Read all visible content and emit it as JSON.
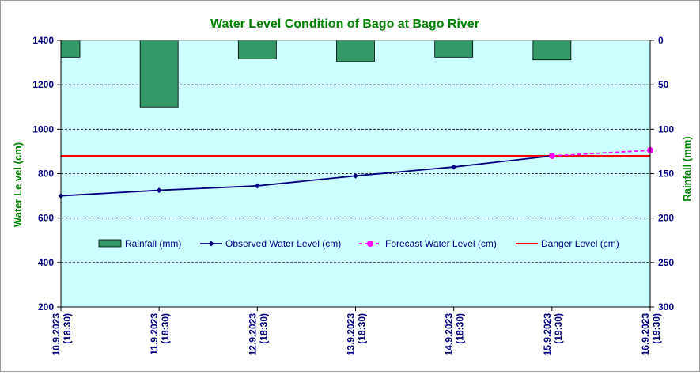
{
  "chart_data": {
    "type": "bar+line",
    "title": "Water Level Condition  of Bago at Bago River",
    "ylabel_left": "Water Le vel (cm)",
    "ylabel_right": "Rainfall (mm)",
    "ylim_left": [
      200,
      1400
    ],
    "yticks_left": [
      "200",
      "400",
      "600",
      "800",
      "1000",
      "1200",
      "1400"
    ],
    "ylim_right": [
      0,
      300
    ],
    "yticks_right": [
      "0",
      "50",
      "100",
      "150",
      "200",
      "250",
      "300"
    ],
    "right_axis_inverted": true,
    "grid": true,
    "legend_position": "inside-middle",
    "x_categories": [
      {
        "date": "10.9.2023",
        "time": "(18:30)"
      },
      {
        "date": "11.9.2023",
        "time": "(18:30)"
      },
      {
        "date": "12.9.2023",
        "time": "(18:30)"
      },
      {
        "date": "13.9.2023",
        "time": "(18:30)"
      },
      {
        "date": "14.9.2023",
        "time": "(18:30)"
      },
      {
        "date": "15.9.2023",
        "time": "(19:30)"
      },
      {
        "date": "16.9.2023",
        "time": "(19:30)"
      }
    ],
    "series": [
      {
        "name": "Rainfall (mm)",
        "kind": "bar",
        "axis": "right",
        "color": "#339966",
        "values": [
          19,
          75,
          21,
          24,
          19,
          22
        ]
      },
      {
        "name": "Observed Water Level (cm)",
        "kind": "line",
        "axis": "left",
        "color": "#000080",
        "values": [
          700,
          725,
          745,
          790,
          830,
          880
        ]
      },
      {
        "name": "Forecast Water Level (cm)",
        "kind": "dashed-line",
        "axis": "left",
        "color": "#ff00ff",
        "points": [
          {
            "index": 5,
            "value": 880
          },
          {
            "index": 6,
            "value": 905
          }
        ]
      },
      {
        "name": "Danger Level (cm)",
        "kind": "constant-line",
        "axis": "left",
        "color": "#ff0000",
        "value": 880
      }
    ],
    "colors": {
      "plot_background": "#ccffff",
      "title": "#008000",
      "axis_labels": "#008000",
      "tick_labels": "#000080"
    }
  }
}
